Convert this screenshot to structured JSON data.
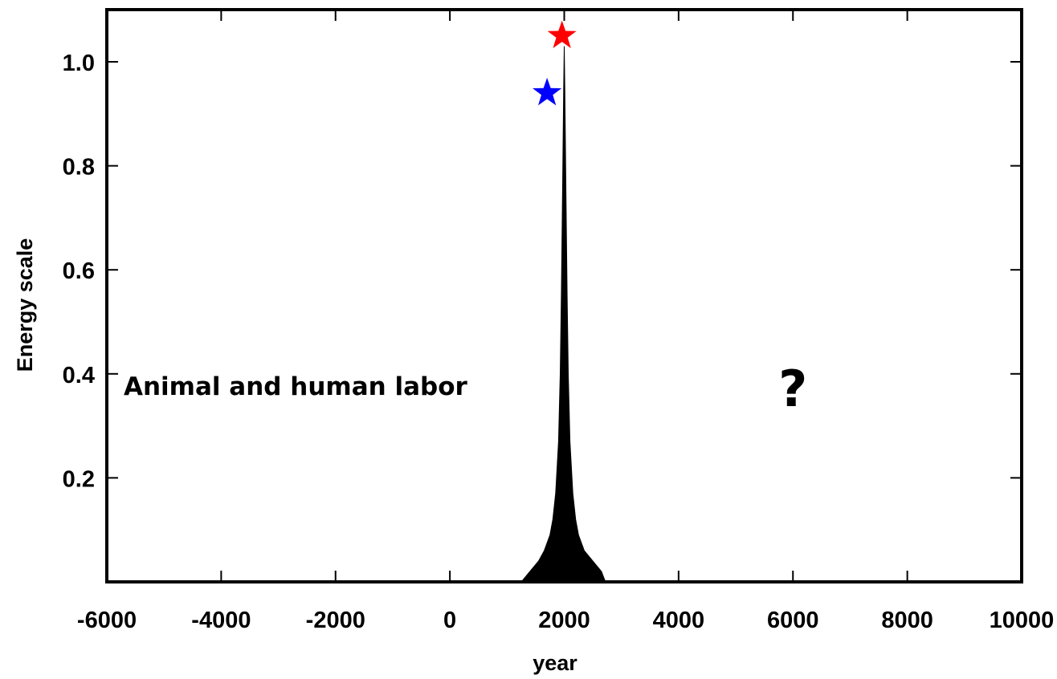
{
  "chart_data": {
    "type": "area",
    "title": "",
    "xlabel": "year",
    "ylabel": "Energy scale",
    "xlim": [
      -6000,
      10000
    ],
    "ylim": [
      0,
      1.1
    ],
    "x_ticks": [
      -6000,
      -4000,
      -2000,
      0,
      2000,
      4000,
      6000,
      8000,
      10000
    ],
    "x_tick_labels": [
      "-6000",
      "-4000",
      "-2000",
      "0",
      "2000",
      "4000",
      "6000",
      "8000",
      "10000"
    ],
    "y_ticks": [
      0.2,
      0.4,
      0.6,
      0.8,
      1.0
    ],
    "y_tick_labels": [
      "0.2",
      "0.4",
      "0.6",
      "0.8",
      "1.0"
    ],
    "grid": false,
    "series": [
      {
        "x": [
          1250,
          1400,
          1550,
          1650,
          1750,
          1800,
          1850,
          1900,
          1930,
          1950,
          1970,
          1990,
          2000,
          2010,
          2030,
          2050,
          2070,
          2100,
          2150,
          2200,
          2250,
          2350,
          2500,
          2650,
          2720
        ],
        "y": [
          0.0,
          0.02,
          0.04,
          0.06,
          0.09,
          0.12,
          0.17,
          0.27,
          0.4,
          0.55,
          0.75,
          0.95,
          1.03,
          0.95,
          0.75,
          0.55,
          0.4,
          0.27,
          0.17,
          0.12,
          0.09,
          0.06,
          0.04,
          0.02,
          0.0
        ],
        "color": "#000000"
      }
    ],
    "markers": [
      {
        "x": 1700,
        "y": 0.94,
        "shape": "star",
        "color": "#0000ff"
      },
      {
        "x": 1960,
        "y": 1.05,
        "shape": "star",
        "color": "#ff0000"
      }
    ],
    "annotations": [
      {
        "text": "Animal and human labor",
        "x": -2700,
        "y": 0.37
      },
      {
        "text": "?",
        "x": 6000,
        "y": 0.37
      }
    ]
  }
}
